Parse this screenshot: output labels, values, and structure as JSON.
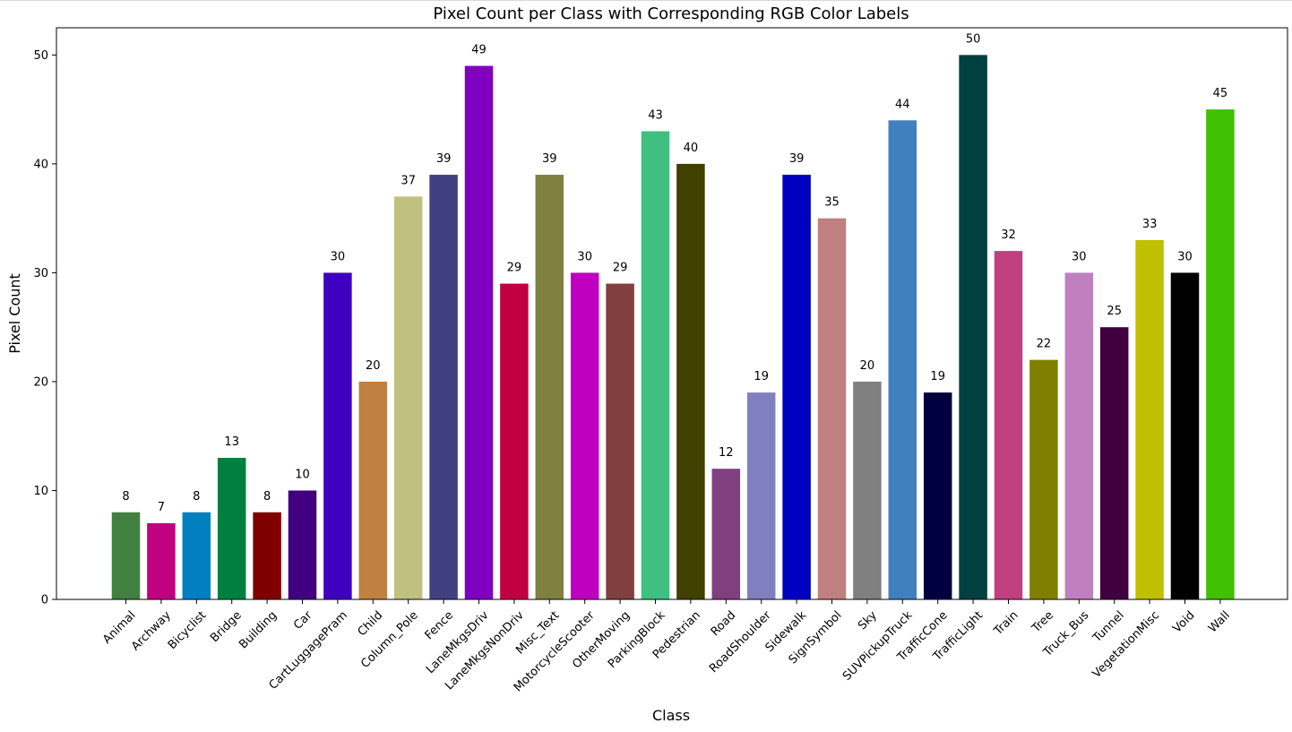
{
  "chart_data": {
    "type": "bar",
    "title": "Pixel Count per Class with Corresponding RGB Color Labels",
    "xlabel": "Class",
    "ylabel": "Pixel Count",
    "ylim": [
      0,
      52.5
    ],
    "yticks": [
      0,
      10,
      20,
      30,
      40,
      50
    ],
    "grid": false,
    "legend": "none",
    "categories": [
      "Animal",
      "Archway",
      "Bicyclist",
      "Bridge",
      "Building",
      "Car",
      "CartLuggagePram",
      "Child",
      "Column_Pole",
      "Fence",
      "LaneMkgsDriv",
      "LaneMkgsNonDriv",
      "Misc_Text",
      "MotorcycleScooter",
      "OtherMoving",
      "ParkingBlock",
      "Pedestrian",
      "Road",
      "RoadShoulder",
      "Sidewalk",
      "SignSymbol",
      "Sky",
      "SUVPickupTruck",
      "TrafficCone",
      "TrafficLight",
      "Train",
      "Tree",
      "Truck_Bus",
      "Tunnel",
      "VegetationMisc",
      "Void",
      "Wall"
    ],
    "values": [
      8,
      7,
      8,
      13,
      8,
      10,
      30,
      20,
      37,
      39,
      49,
      29,
      39,
      30,
      29,
      43,
      40,
      12,
      19,
      39,
      35,
      20,
      44,
      19,
      50,
      32,
      22,
      30,
      25,
      33,
      30,
      45
    ],
    "value_labels": [
      "8",
      "7",
      "8",
      "13",
      "8",
      "10",
      "30",
      "20",
      "37",
      "39",
      "49",
      "29",
      "39",
      "30",
      "29",
      "43",
      "40",
      "12",
      "19",
      "39",
      "35",
      "20",
      "44",
      "19",
      "50",
      "32",
      "22",
      "30",
      "25",
      "33",
      "30",
      "45"
    ],
    "colors": [
      "#408040",
      "#c00080",
      "#0080c0",
      "#008040",
      "#800000",
      "#400080",
      "#4000c0",
      "#c08040",
      "#c0c080",
      "#404080",
      "#8000c0",
      "#c00040",
      "#808040",
      "#c000c0",
      "#804040",
      "#40c080",
      "#404000",
      "#804080",
      "#8080c0",
      "#0000c0",
      "#c08080",
      "#808080",
      "#4080c0",
      "#000040",
      "#004040",
      "#c04080",
      "#808000",
      "#c080c0",
      "#400040",
      "#c0c000",
      "#000000",
      "#40c000"
    ]
  }
}
